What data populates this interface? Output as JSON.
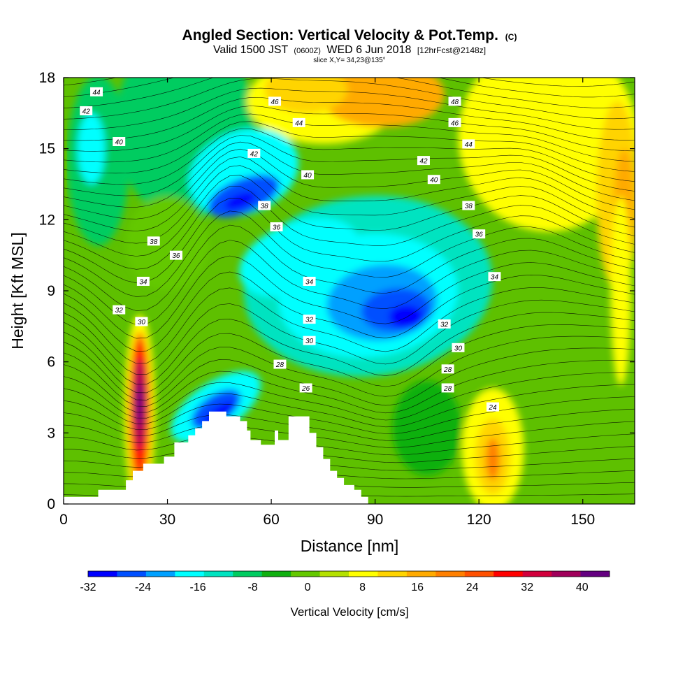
{
  "title": {
    "main": "Angled Section: Vertical Velocity & Pot.Temp.",
    "main_tag": "(C)",
    "valid_prefix": "Valid 1500 JST",
    "valid_zulu": "(0600Z)",
    "valid_date": "WED 6 Jun 2018",
    "forecast": "[12hrFcst@2148z]",
    "slice": "slice X,Y= 34,23@135°"
  },
  "chart_data": {
    "type": "heatmap",
    "xlabel": "Distance [nm]",
    "ylabel": "Height [Kft MSL]",
    "xlim": [
      0,
      165
    ],
    "ylim": [
      0,
      18
    ],
    "x_ticks": [
      "0",
      "30",
      "60",
      "90",
      "120",
      "150"
    ],
    "y_ticks": [
      "0",
      "3",
      "6",
      "9",
      "12",
      "15",
      "18"
    ],
    "colorbar": {
      "label": "Vertical Velocity [cm/s]",
      "range": [
        -32,
        44
      ],
      "ticks": [
        "-32",
        "-24",
        "-16",
        "-8",
        "0",
        "8",
        "16",
        "24",
        "32",
        "40"
      ],
      "colors": [
        "#0000ff",
        "#0050ff",
        "#00a0ff",
        "#00ffff",
        "#00e3c0",
        "#00cc60",
        "#10b010",
        "#64c800",
        "#b4e100",
        "#ffff00",
        "#ffd400",
        "#ffaa00",
        "#ff7f00",
        "#ff5000",
        "#ff0000",
        "#d2003c",
        "#a0005a",
        "#640080"
      ]
    },
    "isentrope_labels": [
      {
        "x": 9.5,
        "y": 17.4,
        "label": "44"
      },
      {
        "x": 6.5,
        "y": 16.6,
        "label": "42"
      },
      {
        "x": 16,
        "y": 15.3,
        "label": "40"
      },
      {
        "x": 61,
        "y": 17.0,
        "label": "46"
      },
      {
        "x": 68,
        "y": 16.1,
        "label": "44"
      },
      {
        "x": 55,
        "y": 14.8,
        "label": "42"
      },
      {
        "x": 70.5,
        "y": 13.9,
        "label": "40"
      },
      {
        "x": 58,
        "y": 12.6,
        "label": "38"
      },
      {
        "x": 61.5,
        "y": 11.7,
        "label": "36"
      },
      {
        "x": 113,
        "y": 17.0,
        "label": "48"
      },
      {
        "x": 113,
        "y": 16.1,
        "label": "46"
      },
      {
        "x": 117,
        "y": 15.2,
        "label": "44"
      },
      {
        "x": 104,
        "y": 14.5,
        "label": "42"
      },
      {
        "x": 107,
        "y": 13.7,
        "label": "40"
      },
      {
        "x": 117,
        "y": 12.6,
        "label": "38"
      },
      {
        "x": 120,
        "y": 11.4,
        "label": "36"
      },
      {
        "x": 124.5,
        "y": 9.6,
        "label": "34"
      },
      {
        "x": 26,
        "y": 11.1,
        "label": "38"
      },
      {
        "x": 32.5,
        "y": 10.5,
        "label": "36"
      },
      {
        "x": 23,
        "y": 9.4,
        "label": "34"
      },
      {
        "x": 16,
        "y": 8.2,
        "label": "32"
      },
      {
        "x": 22.5,
        "y": 7.7,
        "label": "30"
      },
      {
        "x": 71,
        "y": 9.4,
        "label": "34"
      },
      {
        "x": 71,
        "y": 7.8,
        "label": "32"
      },
      {
        "x": 71,
        "y": 6.9,
        "label": "30"
      },
      {
        "x": 62.5,
        "y": 5.9,
        "label": "28"
      },
      {
        "x": 70,
        "y": 4.9,
        "label": "26"
      },
      {
        "x": 110,
        "y": 7.6,
        "label": "32"
      },
      {
        "x": 114,
        "y": 6.6,
        "label": "30"
      },
      {
        "x": 111,
        "y": 5.7,
        "label": "28"
      },
      {
        "x": 111,
        "y": 4.9,
        "label": "28"
      },
      {
        "x": 124,
        "y": 4.1,
        "label": "24"
      }
    ]
  }
}
